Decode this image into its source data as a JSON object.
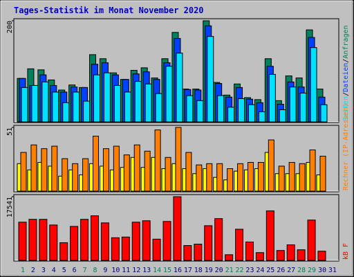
{
  "chart_data": [
    {
      "type": "bar",
      "title": "Tages-Statistik im Monat November 2020",
      "legend_separator": "/",
      "categories": [
        "1",
        "2",
        "3",
        "4",
        "5",
        "6",
        "7",
        "8",
        "9",
        "10",
        "11",
        "12",
        "13",
        "14",
        "15",
        "16",
        "17",
        "18",
        "19",
        "20",
        "21",
        "22",
        "23",
        "24",
        "25",
        "26",
        "27",
        "28",
        "29",
        "30",
        "31"
      ],
      "category_colors": [
        "#00805C",
        "#000080",
        "#000080",
        "#000080",
        "#000080",
        "#000080",
        "#00805C",
        "#00805C",
        "#000080",
        "#000080",
        "#000080",
        "#000080",
        "#000080",
        "#00805C",
        "#00805C",
        "#000080",
        "#000080",
        "#000080",
        "#000080",
        "#000080",
        "#00805C",
        "#00805C",
        "#000080",
        "#000080",
        "#000080",
        "#000080",
        "#000080",
        "#00805C",
        "#00805C",
        "#000080",
        "#000080"
      ],
      "ylim": [
        0,
        200
      ],
      "yticks": [
        200
      ],
      "series": [
        {
          "name": "Anfragen",
          "color": "#00805C",
          "values": [
            86,
            105,
            103,
            83,
            63,
            73,
            68,
            133,
            125,
            97,
            84,
            102,
            107,
            87,
            125,
            177,
            65,
            65,
            200,
            78,
            53,
            75,
            48,
            44,
            125,
            42,
            91,
            87,
            182,
            65,
            null
          ]
        },
        {
          "name": "Dateien",
          "color": "#0040FF",
          "values": [
            86,
            72,
            93,
            72,
            59,
            69,
            68,
            114,
            117,
            93,
            84,
            95,
            99,
            84,
            117,
            165,
            64,
            63,
            190,
            76,
            49,
            68,
            45,
            38,
            110,
            35,
            79,
            69,
            167,
            49,
            null
          ]
        },
        {
          "name": "Seiten",
          "color": "#00E0FF",
          "values": [
            68,
            72,
            79,
            59,
            38,
            59,
            41,
            93,
            97,
            72,
            59,
            80,
            75,
            56,
            110,
            136,
            52,
            42,
            169,
            52,
            29,
            46,
            34,
            20,
            94,
            24,
            69,
            57,
            147,
            34,
            null
          ]
        }
      ]
    },
    {
      "type": "bar",
      "ylim": [
        0,
        51
      ],
      "yticks": [
        51
      ],
      "series": [
        {
          "color": "#FFFF00",
          "values": [
            22,
            17,
            23,
            20,
            12,
            17,
            13,
            22,
            20,
            17,
            19,
            27,
            19,
            27,
            18,
            22,
            18,
            14,
            18,
            11,
            9,
            16,
            17,
            18,
            31,
            14,
            14,
            14,
            23,
            13,
            null
          ]
        },
        {
          "name": "Rechner (IP-Adressen)",
          "color": "#FF8000",
          "values": [
            31,
            37,
            34,
            36,
            26,
            22,
            26,
            44,
            34,
            36,
            29,
            37,
            32,
            49,
            27,
            51,
            31,
            21,
            22,
            22,
            18,
            22,
            23,
            23,
            41,
            20,
            23,
            22,
            33,
            28,
            null
          ]
        }
      ]
    },
    {
      "type": "bar",
      "ylim": [
        0,
        17541
      ],
      "yticks": [
        17541
      ],
      "series": [
        {
          "name": "kB F",
          "color": "#FF0000",
          "values": [
            10525,
            11304,
            11304,
            9745,
            4873,
            9355,
            11304,
            12279,
            10330,
            6237,
            6432,
            10525,
            10914,
            5847,
            10720,
            17541,
            4093,
            4483,
            9550,
            11499,
            1559,
            8576,
            5067,
            2144,
            13643,
            2729,
            4288,
            2924,
            11109,
            2534,
            null
          ]
        }
      ]
    }
  ]
}
